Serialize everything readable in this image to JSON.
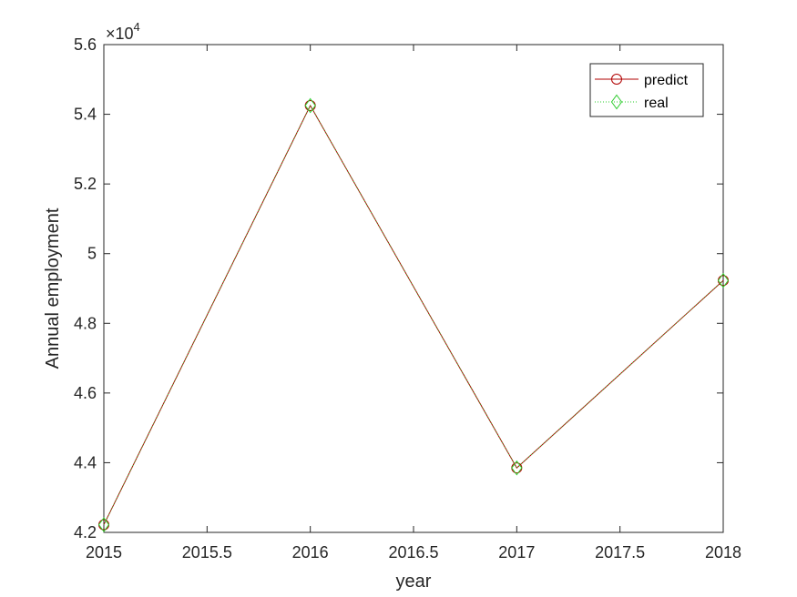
{
  "chart_data": {
    "type": "line",
    "xlabel": "year",
    "ylabel": "Annual employment",
    "y_exponent_base": "×10",
    "y_exponent": "4",
    "xlim": [
      2015,
      2018
    ],
    "ylim": [
      42000,
      56000
    ],
    "x_ticks": [
      {
        "value": 2015,
        "label": "2015"
      },
      {
        "value": 2015.5,
        "label": "2015.5"
      },
      {
        "value": 2016,
        "label": "2016"
      },
      {
        "value": 2016.5,
        "label": "2016.5"
      },
      {
        "value": 2017,
        "label": "2017"
      },
      {
        "value": 2017.5,
        "label": "2017.5"
      },
      {
        "value": 2018,
        "label": "2018"
      }
    ],
    "y_ticks": [
      {
        "value": 42000,
        "label": "4.2"
      },
      {
        "value": 44000,
        "label": "4.4"
      },
      {
        "value": 46000,
        "label": "4.6"
      },
      {
        "value": 48000,
        "label": "4.8"
      },
      {
        "value": 50000,
        "label": "5"
      },
      {
        "value": 52000,
        "label": "5.2"
      },
      {
        "value": 54000,
        "label": "5.4"
      },
      {
        "value": 56000,
        "label": "5.6"
      }
    ],
    "grid": false,
    "legend_position": "top-right",
    "x": [
      2015,
      2016,
      2017,
      2018
    ],
    "series": [
      {
        "name": "predict",
        "values": [
          42220,
          54250,
          43850,
          49230
        ],
        "color": "#b00000",
        "marker": "circle",
        "line_style": "solid"
      },
      {
        "name": "real",
        "values": [
          42220,
          54250,
          43850,
          49230
        ],
        "color": "#2ecc2e",
        "marker": "diamond",
        "line_style": "dotted"
      }
    ]
  }
}
